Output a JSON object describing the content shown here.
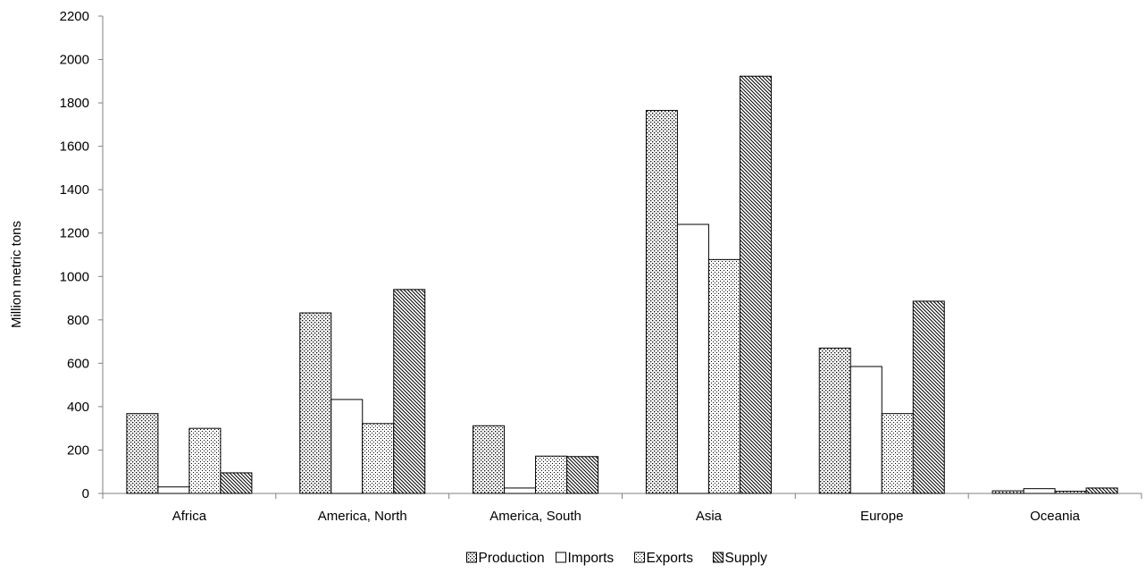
{
  "chart_data": {
    "type": "bar",
    "title": "",
    "xlabel": "",
    "ylabel": "Million metric tons",
    "ylim": [
      0,
      2200
    ],
    "yticks": [
      0,
      200,
      400,
      600,
      800,
      1000,
      1200,
      1400,
      1600,
      1800,
      2000,
      2200
    ],
    "grid": false,
    "legend_position": "bottom",
    "categories": [
      "Africa",
      "America, North",
      "America, South",
      "Asia",
      "Europe",
      "Oceania"
    ],
    "series": [
      {
        "name": "Production",
        "pattern": "dense-dots",
        "values": [
          368,
          832,
          312,
          1765,
          670,
          12
        ]
      },
      {
        "name": "Imports",
        "pattern": "none",
        "values": [
          30,
          433,
          25,
          1240,
          585,
          22
        ]
      },
      {
        "name": "Exports",
        "pattern": "sparse-dots",
        "values": [
          300,
          322,
          172,
          1078,
          368,
          10
        ]
      },
      {
        "name": "Supply",
        "pattern": "diagonal-hatch",
        "values": [
          95,
          940,
          170,
          1923,
          886,
          25
        ]
      }
    ],
    "colors": {
      "bar_fill": "#ffffff",
      "bar_stroke": "#000000",
      "axis": "#808080",
      "pattern": "#000000"
    }
  }
}
